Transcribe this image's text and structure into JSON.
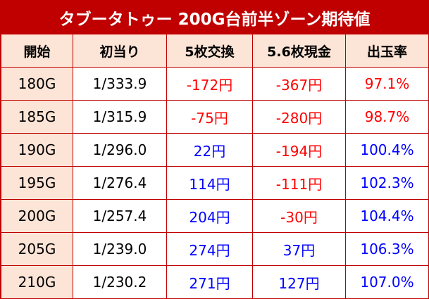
{
  "header": {
    "title": "タブータトゥー 200G台前半ゾーン期待値"
  },
  "table": {
    "columns": [
      "開始",
      "初当り",
      "5枚交換",
      "5.6枚現金",
      "出玉率"
    ],
    "rows": [
      [
        "180G",
        "1/333.9",
        "-172円",
        "-367円",
        "97.1%"
      ],
      [
        "185G",
        "1/315.9",
        "-75円",
        "-280円",
        "98.7%"
      ],
      [
        "190G",
        "1/296.0",
        "22円",
        "-194円",
        "100.4%"
      ],
      [
        "195G",
        "1/276.4",
        "114円",
        "-111円",
        "102.3%"
      ],
      [
        "200G",
        "1/257.4",
        "204円",
        "-30円",
        "104.4%"
      ],
      [
        "205G",
        "1/239.0",
        "274円",
        "37円",
        "106.3%"
      ],
      [
        "210G",
        "1/230.2",
        "271円",
        "127円",
        "107.0%"
      ]
    ]
  }
}
